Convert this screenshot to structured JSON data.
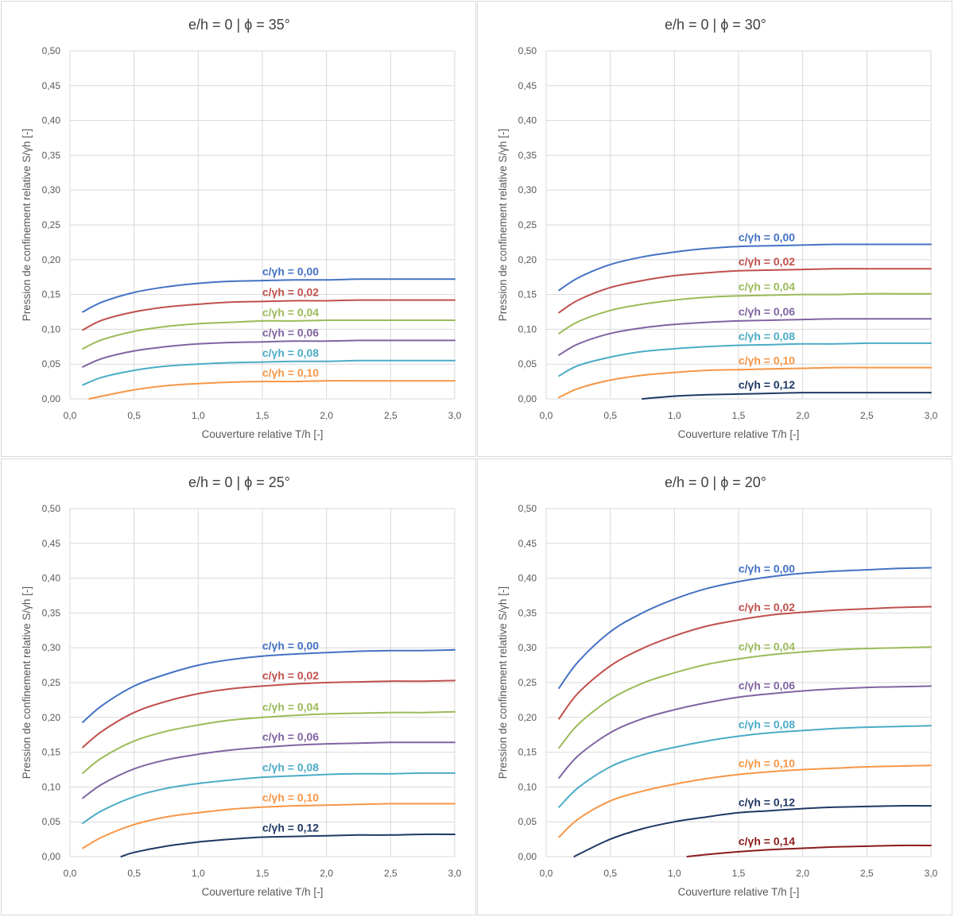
{
  "chart_data": [
    {
      "type": "line",
      "title": "e/h = 0 | ϕ = 35°",
      "xlabel": "Couverture relative T/h [-]",
      "ylabel": "Pression de confinement relative S/γh [-]",
      "xlim": [
        0,
        3
      ],
      "ylim": [
        0,
        0.5
      ],
      "xticks": [
        "0,0",
        "0,5",
        "1,0",
        "1,5",
        "2,0",
        "2,5",
        "3,0"
      ],
      "yticks": [
        "0,00",
        "0,05",
        "0,10",
        "0,15",
        "0,20",
        "0,25",
        "0,30",
        "0,35",
        "0,40",
        "0,45",
        "0,50"
      ],
      "grid": true,
      "x": [
        0.1,
        0.25,
        0.5,
        0.75,
        1.0,
        1.25,
        1.5,
        1.75,
        2.0,
        2.25,
        2.5,
        2.75,
        3.0
      ],
      "series": [
        {
          "name": "c/γh = 0,00",
          "color": "#4472c4",
          "values": [
            0.125,
            0.139,
            0.153,
            0.161,
            0.166,
            0.169,
            0.17,
            0.171,
            0.171,
            0.172,
            0.172,
            0.172,
            0.172
          ]
        },
        {
          "name": "c/γh = 0,02",
          "color": "#c0504d",
          "values": [
            0.099,
            0.113,
            0.125,
            0.132,
            0.136,
            0.139,
            0.14,
            0.141,
            0.141,
            0.142,
            0.142,
            0.142,
            0.142
          ]
        },
        {
          "name": "c/γh = 0,04",
          "color": "#9bbb59",
          "values": [
            0.072,
            0.085,
            0.097,
            0.104,
            0.108,
            0.11,
            0.112,
            0.112,
            0.113,
            0.113,
            0.113,
            0.113,
            0.113
          ]
        },
        {
          "name": "c/γh = 0,06",
          "color": "#8064a2",
          "values": [
            0.046,
            0.058,
            0.069,
            0.075,
            0.079,
            0.081,
            0.082,
            0.083,
            0.083,
            0.084,
            0.084,
            0.084,
            0.084
          ]
        },
        {
          "name": "c/γh = 0,08",
          "color": "#4bacc6",
          "values": [
            0.02,
            0.031,
            0.041,
            0.047,
            0.05,
            0.052,
            0.053,
            0.054,
            0.054,
            0.055,
            0.055,
            0.055,
            0.055
          ]
        },
        {
          "name": "c/γh = 0,10",
          "color": "#f79646",
          "x": [
            0.15,
            0.25,
            0.5,
            0.75,
            1.0,
            1.25,
            1.5,
            1.75,
            2.0,
            2.25,
            2.5,
            2.75,
            3.0
          ],
          "values": [
            0.0,
            0.004,
            0.013,
            0.019,
            0.022,
            0.024,
            0.025,
            0.025,
            0.026,
            0.026,
            0.026,
            0.026,
            0.026
          ]
        }
      ]
    },
    {
      "type": "line",
      "title": "e/h = 0 | ϕ = 30°",
      "xlabel": "Couverture relative T/h [-]",
      "ylabel": "Pression de confinement relative S/γh [-]",
      "xlim": [
        0,
        3
      ],
      "ylim": [
        0,
        0.5
      ],
      "xticks": [
        "0,0",
        "0,5",
        "1,0",
        "1,5",
        "2,0",
        "2,5",
        "3,0"
      ],
      "yticks": [
        "0,00",
        "0,05",
        "0,10",
        "0,15",
        "0,20",
        "0,25",
        "0,30",
        "0,35",
        "0,40",
        "0,45",
        "0,50"
      ],
      "grid": true,
      "x": [
        0.1,
        0.25,
        0.5,
        0.75,
        1.0,
        1.25,
        1.5,
        1.75,
        2.0,
        2.25,
        2.5,
        2.75,
        3.0
      ],
      "series": [
        {
          "name": "c/γh = 0,00",
          "color": "#4472c4",
          "values": [
            0.156,
            0.174,
            0.193,
            0.204,
            0.211,
            0.216,
            0.219,
            0.22,
            0.221,
            0.222,
            0.222,
            0.222,
            0.222
          ]
        },
        {
          "name": "c/γh = 0,02",
          "color": "#c0504d",
          "values": [
            0.124,
            0.142,
            0.16,
            0.17,
            0.177,
            0.181,
            0.184,
            0.185,
            0.186,
            0.187,
            0.187,
            0.187,
            0.187
          ]
        },
        {
          "name": "c/γh = 0,04",
          "color": "#9bbb59",
          "values": [
            0.094,
            0.111,
            0.127,
            0.136,
            0.142,
            0.146,
            0.148,
            0.149,
            0.15,
            0.15,
            0.151,
            0.151,
            0.151
          ]
        },
        {
          "name": "c/γh = 0,06",
          "color": "#8064a2",
          "values": [
            0.063,
            0.079,
            0.094,
            0.102,
            0.107,
            0.11,
            0.112,
            0.113,
            0.114,
            0.115,
            0.115,
            0.115,
            0.115
          ]
        },
        {
          "name": "c/γh = 0,08",
          "color": "#4bacc6",
          "values": [
            0.033,
            0.048,
            0.06,
            0.068,
            0.072,
            0.075,
            0.077,
            0.078,
            0.079,
            0.079,
            0.08,
            0.08,
            0.08
          ]
        },
        {
          "name": "c/γh = 0,10",
          "color": "#f79646",
          "values": [
            0.002,
            0.015,
            0.027,
            0.034,
            0.038,
            0.041,
            0.042,
            0.043,
            0.044,
            0.045,
            0.045,
            0.045,
            0.045
          ]
        },
        {
          "name": "c/γh = 0,12",
          "color": "#1f3864",
          "x": [
            0.75,
            1.0,
            1.25,
            1.5,
            1.75,
            2.0,
            2.25,
            2.5,
            2.75,
            3.0
          ],
          "values": [
            0.0,
            0.004,
            0.006,
            0.007,
            0.008,
            0.009,
            0.009,
            0.009,
            0.009,
            0.009
          ]
        }
      ]
    },
    {
      "type": "line",
      "title": "e/h = 0 | ϕ = 25°",
      "xlabel": "Couverture relative T/h [-]",
      "ylabel": "Pression de confinement relative S/γh [-]",
      "xlim": [
        0,
        3
      ],
      "ylim": [
        0,
        0.5
      ],
      "xticks": [
        "0,0",
        "0,5",
        "1,0",
        "1,5",
        "2,0",
        "2,5",
        "3,0"
      ],
      "yticks": [
        "0,00",
        "0,05",
        "0,10",
        "0,15",
        "0,20",
        "0,25",
        "0,30",
        "0,35",
        "0,40",
        "0,45",
        "0,50"
      ],
      "grid": true,
      "x": [
        0.1,
        0.25,
        0.5,
        0.75,
        1.0,
        1.25,
        1.5,
        1.75,
        2.0,
        2.25,
        2.5,
        2.75,
        3.0
      ],
      "series": [
        {
          "name": "c/γh = 0,00",
          "color": "#4472c4",
          "values": [
            0.193,
            0.217,
            0.245,
            0.262,
            0.275,
            0.283,
            0.288,
            0.291,
            0.293,
            0.295,
            0.296,
            0.296,
            0.297
          ]
        },
        {
          "name": "c/γh = 0,02",
          "color": "#c0504d",
          "values": [
            0.157,
            0.18,
            0.207,
            0.223,
            0.234,
            0.241,
            0.245,
            0.248,
            0.25,
            0.251,
            0.252,
            0.252,
            0.253
          ]
        },
        {
          "name": "c/γh = 0,04",
          "color": "#9bbb59",
          "values": [
            0.12,
            0.142,
            0.166,
            0.18,
            0.189,
            0.196,
            0.2,
            0.203,
            0.205,
            0.206,
            0.207,
            0.207,
            0.208
          ]
        },
        {
          "name": "c/γh = 0,06",
          "color": "#8064a2",
          "values": [
            0.084,
            0.104,
            0.126,
            0.139,
            0.147,
            0.153,
            0.157,
            0.16,
            0.162,
            0.163,
            0.164,
            0.164,
            0.164
          ]
        },
        {
          "name": "c/γh = 0,08",
          "color": "#4bacc6",
          "values": [
            0.048,
            0.066,
            0.086,
            0.098,
            0.105,
            0.11,
            0.114,
            0.116,
            0.118,
            0.119,
            0.119,
            0.12,
            0.12
          ]
        },
        {
          "name": "c/γh = 0,10",
          "color": "#f79646",
          "values": [
            0.012,
            0.028,
            0.046,
            0.057,
            0.063,
            0.068,
            0.071,
            0.073,
            0.074,
            0.075,
            0.076,
            0.076,
            0.076
          ]
        },
        {
          "name": "c/γh = 0,12",
          "color": "#1f3864",
          "x": [
            0.4,
            0.5,
            0.75,
            1.0,
            1.25,
            1.5,
            1.75,
            2.0,
            2.25,
            2.5,
            2.75,
            3.0
          ],
          "values": [
            0.0,
            0.006,
            0.015,
            0.021,
            0.025,
            0.028,
            0.029,
            0.03,
            0.031,
            0.031,
            0.032,
            0.032
          ]
        }
      ]
    },
    {
      "type": "line",
      "title": "e/h = 0 | ϕ = 20°",
      "xlabel": "Couverture relative T/h [-]",
      "ylabel": "Pression de confinement relative S/γh [-]",
      "xlim": [
        0,
        3
      ],
      "ylim": [
        0,
        0.5
      ],
      "xticks": [
        "0,0",
        "0,5",
        "1,0",
        "1,5",
        "2,0",
        "2,5",
        "3,0"
      ],
      "yticks": [
        "0,00",
        "0,05",
        "0,10",
        "0,15",
        "0,20",
        "0,25",
        "0,30",
        "0,35",
        "0,40",
        "0,45",
        "0,50"
      ],
      "grid": true,
      "x": [
        0.1,
        0.25,
        0.5,
        0.75,
        1.0,
        1.25,
        1.5,
        1.75,
        2.0,
        2.25,
        2.5,
        2.75,
        3.0
      ],
      "series": [
        {
          "name": "c/γh = 0,00",
          "color": "#4472c4",
          "values": [
            0.242,
            0.28,
            0.323,
            0.35,
            0.37,
            0.385,
            0.395,
            0.402,
            0.407,
            0.41,
            0.412,
            0.414,
            0.415
          ]
        },
        {
          "name": "c/γh = 0,02",
          "color": "#c0504d",
          "values": [
            0.198,
            0.235,
            0.274,
            0.299,
            0.317,
            0.331,
            0.34,
            0.347,
            0.351,
            0.354,
            0.356,
            0.358,
            0.359
          ]
        },
        {
          "name": "c/γh = 0,04",
          "color": "#9bbb59",
          "values": [
            0.156,
            0.19,
            0.226,
            0.249,
            0.264,
            0.276,
            0.284,
            0.29,
            0.294,
            0.297,
            0.299,
            0.3,
            0.301
          ]
        },
        {
          "name": "c/γh = 0,06",
          "color": "#8064a2",
          "values": [
            0.113,
            0.145,
            0.178,
            0.198,
            0.211,
            0.221,
            0.229,
            0.234,
            0.238,
            0.241,
            0.243,
            0.244,
            0.245
          ]
        },
        {
          "name": "c/γh = 0,08",
          "color": "#4bacc6",
          "values": [
            0.071,
            0.099,
            0.129,
            0.146,
            0.157,
            0.166,
            0.173,
            0.178,
            0.181,
            0.184,
            0.186,
            0.187,
            0.188
          ]
        },
        {
          "name": "c/γh = 0,10",
          "color": "#f79646",
          "values": [
            0.028,
            0.054,
            0.08,
            0.094,
            0.104,
            0.112,
            0.118,
            0.122,
            0.125,
            0.127,
            0.129,
            0.13,
            0.131
          ]
        },
        {
          "name": "c/γh = 0,12",
          "color": "#1f3864",
          "x": [
            0.22,
            0.25,
            0.5,
            0.75,
            1.0,
            1.25,
            1.5,
            1.75,
            2.0,
            2.25,
            2.5,
            2.75,
            3.0
          ],
          "values": [
            0.0,
            0.003,
            0.025,
            0.04,
            0.05,
            0.057,
            0.063,
            0.066,
            0.069,
            0.071,
            0.072,
            0.073,
            0.073
          ]
        },
        {
          "name": "c/γh = 0,14",
          "color": "#8b1a1a",
          "x": [
            1.1,
            1.25,
            1.5,
            1.75,
            2.0,
            2.25,
            2.5,
            2.75,
            3.0
          ],
          "values": [
            0.0,
            0.003,
            0.007,
            0.01,
            0.012,
            0.014,
            0.015,
            0.016,
            0.016
          ]
        }
      ]
    }
  ]
}
